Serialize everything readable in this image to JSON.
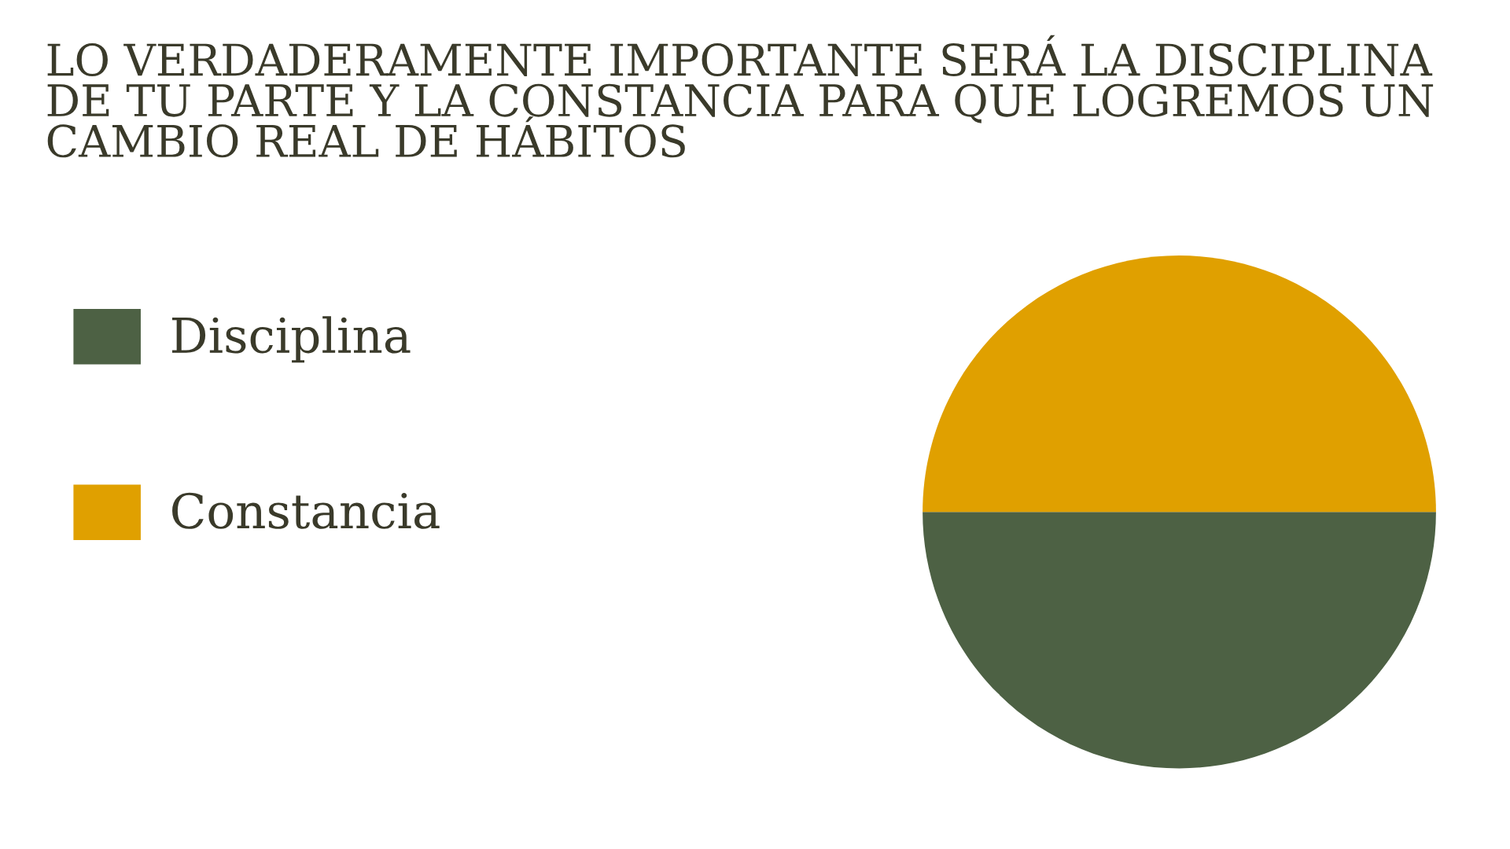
{
  "chart_data": {
    "type": "pie",
    "title": "LO VERDADERAMENTE IMPORTANTE SERÁ LA DISCIPLINA DE TU PARTE Y LA CONSTANCIA PARA QUE LOGREMOS UN CAMBIO REAL DE HÁBITOS",
    "categories": [
      "Disciplina",
      "Constancia"
    ],
    "values": [
      50,
      50
    ],
    "colors": [
      "#4d6144",
      "#e0a000"
    ],
    "legend": "left"
  }
}
